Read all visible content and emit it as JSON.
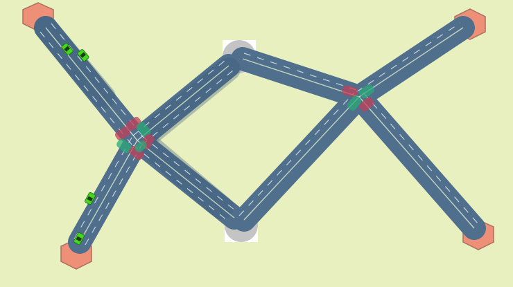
{
  "colors": {
    "background": "#e8f0c0",
    "road": "#4f6f8c",
    "lane_marking": "#e6eef0",
    "endpoint": "#ee9078",
    "signal_red": "#c0405a",
    "signal_green": "#2aa878",
    "car": "#44d61e",
    "corner_marker": "#c4c4c4"
  },
  "icons": {
    "endpoint": "hexagon-icon",
    "car": "car-icon",
    "corner": "circle-in-square-icon",
    "signal": "traffic-signal-icon"
  },
  "roads": [
    {
      "name": "road-nw-to-west-junction"
    },
    {
      "name": "road-sw-to-west-junction"
    },
    {
      "name": "road-west-junction-to-top-bend"
    },
    {
      "name": "road-top-bend-to-east-junction"
    },
    {
      "name": "road-west-junction-to-bottom-bend"
    },
    {
      "name": "road-bottom-bend-to-east-junction"
    },
    {
      "name": "road-east-junction-to-ne"
    },
    {
      "name": "road-east-junction-to-se"
    }
  ],
  "endpoints": [
    "nw",
    "sw",
    "ne",
    "se"
  ],
  "junctions": [
    "west",
    "east"
  ],
  "cars": [
    {
      "road": "road-nw-to-west-junction",
      "progress": 0.3
    },
    {
      "road": "road-nw-to-west-junction",
      "progress": 0.4
    },
    {
      "road": "road-sw-to-west-junction",
      "progress": 0.45
    },
    {
      "road": "road-sw-to-west-junction",
      "progress": 0.15
    }
  ]
}
